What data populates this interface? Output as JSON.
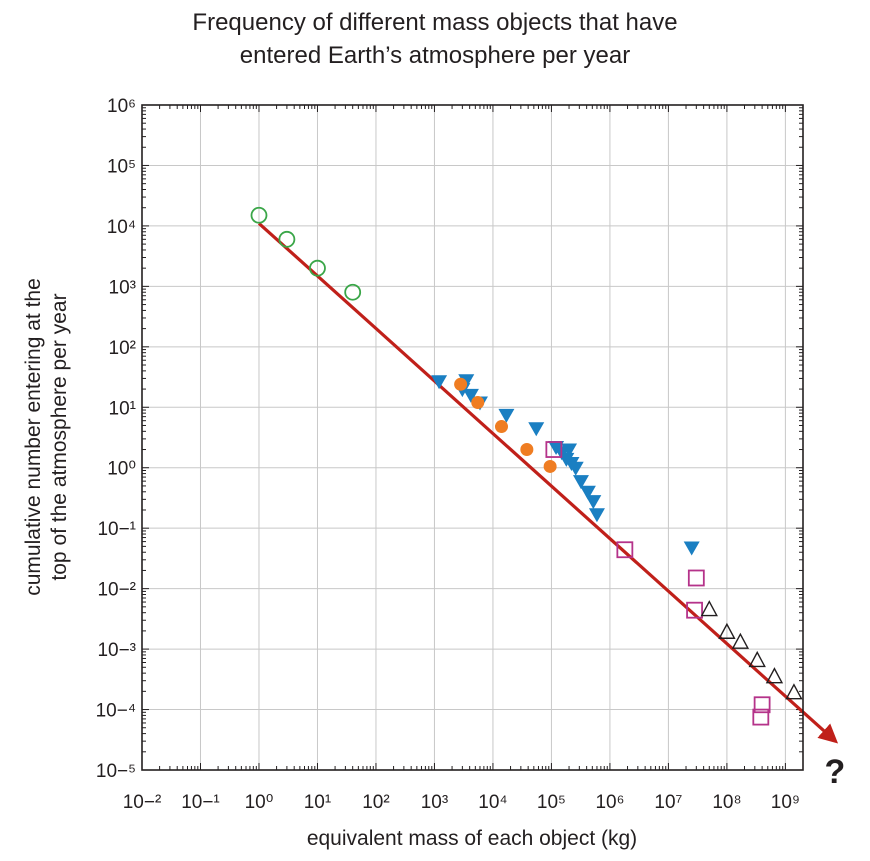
{
  "chart_data": {
    "type": "scatter",
    "title_lines": [
      "Frequency of different mass objects that have",
      "entered Earth’s atmosphere per year"
    ],
    "xlabel": "equivalent mass of each object (kg)",
    "ylabel_lines": [
      "cumulative number entering at the",
      "top of the atmosphere per year"
    ],
    "x_scale": "log",
    "y_scale": "log",
    "xlim": [
      0.01,
      2000000000
    ],
    "ylim": [
      1e-05,
      1000000
    ],
    "x_tick_exponents": [
      -2,
      -1,
      0,
      1,
      2,
      3,
      4,
      5,
      6,
      7,
      8,
      9
    ],
    "y_tick_exponents": [
      -5,
      -4,
      -3,
      -2,
      -1,
      0,
      1,
      2,
      3,
      4,
      5,
      6
    ],
    "tick_base": "10",
    "grid": true,
    "trend_line": {
      "color": "#c0201a",
      "points": [
        [
          1,
          11000
        ],
        [
          6000000000,
          3.5e-05
        ]
      ],
      "arrow_end": true,
      "end_label": "?",
      "end_label_color": "#e74c3c"
    },
    "series": [
      {
        "marker": "open-circle",
        "color": "#3aa648",
        "points": [
          [
            1,
            15000
          ],
          [
            3,
            6000
          ],
          [
            10,
            2000
          ],
          [
            40,
            800
          ]
        ]
      },
      {
        "marker": "filled-down-triangle",
        "color": "#1a7fc2",
        "points": [
          [
            1200,
            27
          ],
          [
            3000,
            20
          ],
          [
            3500,
            28
          ],
          [
            4200,
            16
          ],
          [
            6000,
            12
          ],
          [
            17000,
            7.5
          ],
          [
            55000,
            4.5
          ],
          [
            120000,
            2.2
          ],
          [
            150000,
            1.8
          ],
          [
            180000,
            1.4
          ],
          [
            200000,
            2.0
          ],
          [
            220000,
            1.2
          ],
          [
            260000,
            1.0
          ],
          [
            320000,
            0.6
          ],
          [
            420000,
            0.4
          ],
          [
            520000,
            0.28
          ],
          [
            600000,
            0.17
          ],
          [
            25000000,
            0.048
          ]
        ]
      },
      {
        "marker": "filled-circle",
        "color": "#ef7d22",
        "points": [
          [
            2800,
            24
          ],
          [
            5500,
            12
          ],
          [
            14000,
            4.8
          ],
          [
            38000,
            2.0
          ],
          [
            95000,
            1.05
          ]
        ]
      },
      {
        "marker": "open-square",
        "color": "#b5338a",
        "points": [
          [
            110000,
            2.0
          ],
          [
            1800000,
            0.044
          ],
          [
            30000000,
            0.015
          ],
          [
            28000000,
            0.0044
          ],
          [
            400000000,
            0.00012
          ],
          [
            380000000,
            7.5e-05
          ]
        ]
      },
      {
        "marker": "open-up-triangle",
        "color": "#231f20",
        "points": [
          [
            50000000,
            0.0045
          ],
          [
            100000000,
            0.0019
          ],
          [
            170000000,
            0.0013
          ],
          [
            330000000,
            0.00065
          ],
          [
            650000000,
            0.00035
          ],
          [
            1400000000,
            0.00019
          ]
        ]
      }
    ]
  }
}
